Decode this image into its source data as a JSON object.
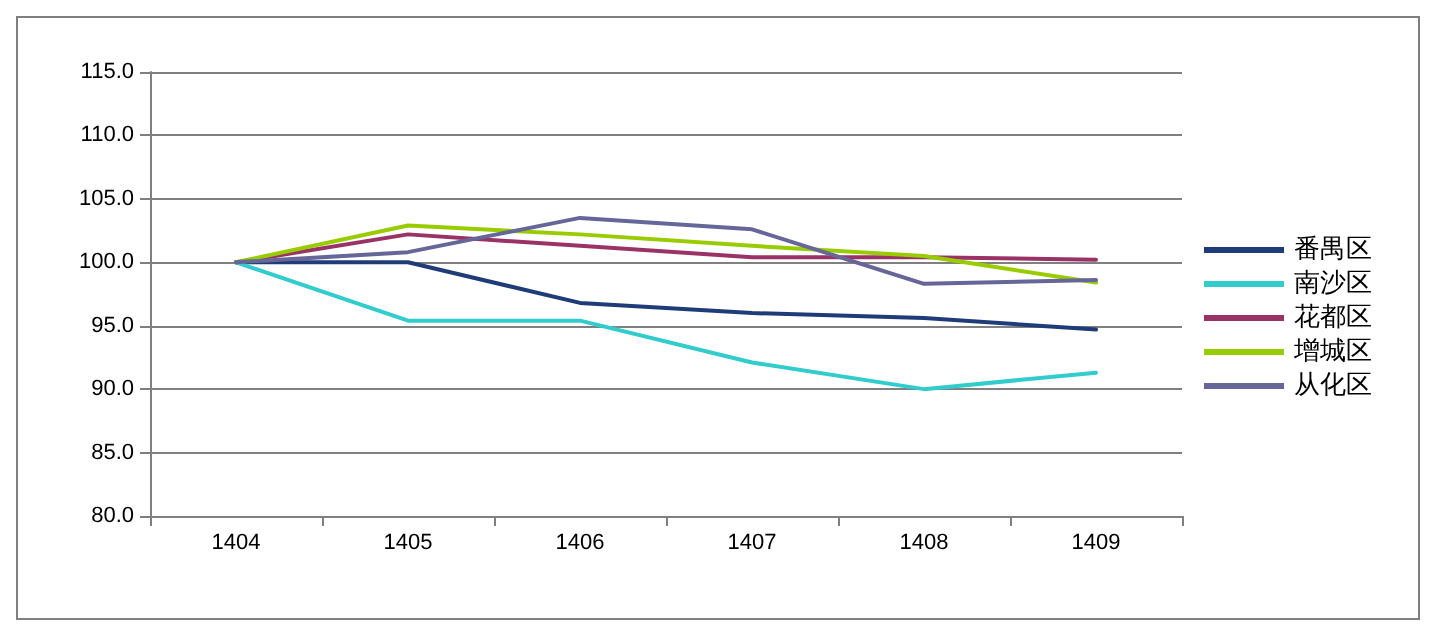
{
  "chart_data": {
    "type": "line",
    "categories": [
      "1404",
      "1405",
      "1406",
      "1407",
      "1408",
      "1409"
    ],
    "series": [
      {
        "name": "番禺区",
        "color": "#1f3c78",
        "values": [
          100,
          100,
          96.8,
          96.0,
          95.6,
          94.7
        ]
      },
      {
        "name": "南沙区",
        "color": "#33cccc",
        "values": [
          100,
          95.4,
          95.4,
          92.1,
          90.0,
          91.3
        ]
      },
      {
        "name": "花都区",
        "color": "#993366",
        "values": [
          100,
          102.2,
          101.3,
          100.4,
          100.4,
          100.2
        ]
      },
      {
        "name": "增城区",
        "color": "#99cc00",
        "values": [
          100,
          102.9,
          102.2,
          101.3,
          100.5,
          98.4
        ]
      },
      {
        "name": "从化区",
        "color": "#666699",
        "values": [
          100,
          100.8,
          103.5,
          102.6,
          98.3,
          98.6
        ]
      }
    ],
    "ylim": [
      80,
      115
    ],
    "yticks": [
      {
        "value": 80,
        "label": "80.0"
      },
      {
        "value": 85,
        "label": "85.0"
      },
      {
        "value": 90,
        "label": "90.0"
      },
      {
        "value": 95,
        "label": "95.0"
      },
      {
        "value": 100,
        "label": "100.0"
      },
      {
        "value": 105,
        "label": "105.0"
      },
      {
        "value": 110,
        "label": "110.0"
      },
      {
        "value": 115,
        "label": "115.0"
      }
    ],
    "grid": "y",
    "legend": "right",
    "marker": "none",
    "line_style": "solid"
  }
}
